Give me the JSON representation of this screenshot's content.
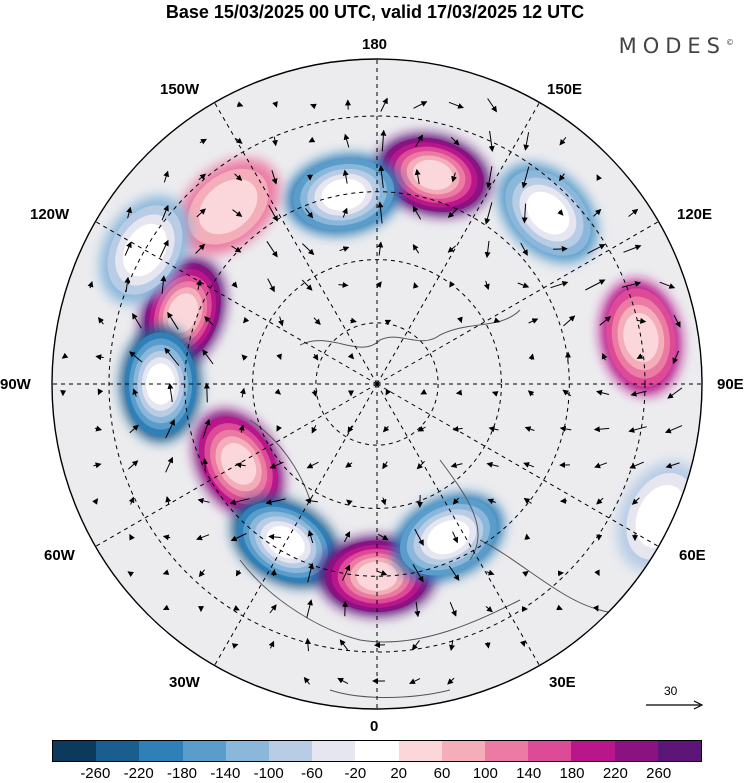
{
  "title": "Base 15/03/2025 00 UTC, valid 17/03/2025 12 UTC",
  "brand": "MODES",
  "brand_mark": "©",
  "longitude_labels": {
    "lon_180": "180",
    "lon_150e": "150E",
    "lon_120e": "120E",
    "lon_90e": "90E",
    "lon_60e": "60E",
    "lon_30e": "30E",
    "lon_0": "0",
    "lon_30w": "30W",
    "lon_60w": "60W",
    "lon_90w": "90W",
    "lon_120w": "120W",
    "lon_150w": "150W"
  },
  "reference_vector": {
    "value": "30"
  },
  "colorbar": {
    "colors": [
      "#0b3a5c",
      "#1a5e8f",
      "#2f7fb8",
      "#5a9dcb",
      "#8bb7db",
      "#b9cce6",
      "#e6e6f1",
      "#ffffff",
      "#fbd7dc",
      "#f4aeba",
      "#ec7ba3",
      "#dc4a98",
      "#b9168b",
      "#8a1281",
      "#5e1578"
    ],
    "ticks": [
      "-260",
      "-220",
      "-180",
      "-140",
      "-100",
      "-60",
      "-20",
      "20",
      "60",
      "100",
      "140",
      "180",
      "220",
      "260"
    ]
  },
  "anomaly_centers": [
    {
      "lon": -110,
      "lat": 42,
      "value": 260
    },
    {
      "lon": -90,
      "lat": 40,
      "value": -260
    },
    {
      "lon": -60,
      "lat": 52,
      "value": 220
    },
    {
      "lon": -30,
      "lat": 47,
      "value": -260
    },
    {
      "lon": 0,
      "lat": 45,
      "value": 260
    },
    {
      "lon": 25,
      "lat": 50,
      "value": -220
    },
    {
      "lon": 65,
      "lat": 22,
      "value": -100
    },
    {
      "lon": 100,
      "lat": 30,
      "value": 180
    },
    {
      "lon": 135,
      "lat": 35,
      "value": -180
    },
    {
      "lon": 165,
      "lat": 40,
      "value": 260
    },
    {
      "lon": -170,
      "lat": 45,
      "value": -220
    },
    {
      "lon": -140,
      "lat": 37,
      "value": 100
    },
    {
      "lon": -120,
      "lat": 30,
      "value": -140
    }
  ]
}
